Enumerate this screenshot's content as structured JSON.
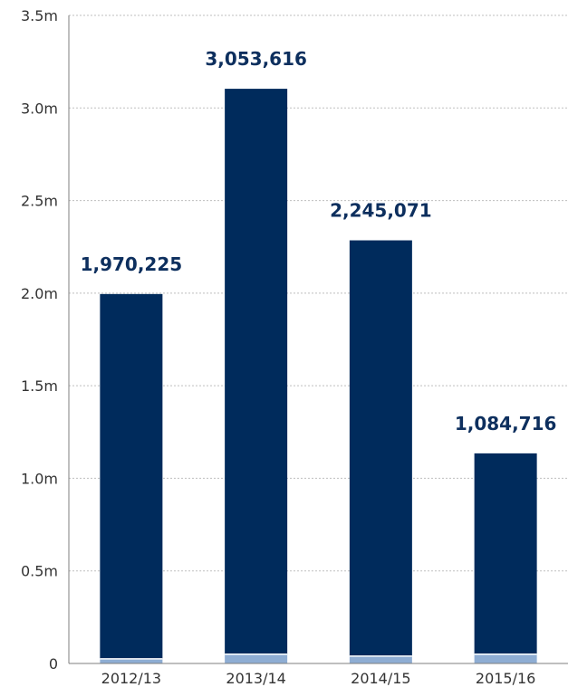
{
  "chart_data": {
    "type": "bar",
    "title": "",
    "xlabel": "",
    "ylabel": "",
    "categories": [
      "2012/13",
      "2013/14",
      "2014/15",
      "2015/16"
    ],
    "series": [
      {
        "values": [
          1970225,
          3053616,
          2245071,
          1084716
        ]
      },
      {
        "values": [
          25000,
          50000,
          40000,
          50000
        ]
      }
    ],
    "data_labels": [
      "1,970,225",
      "3,053,616",
      "2,245,071",
      "1,084,716"
    ],
    "ylim": [
      0,
      3500000
    ],
    "yticks": [
      0,
      500000,
      1000000,
      1500000,
      2000000,
      2500000,
      3000000,
      3500000
    ],
    "ytick_labels": [
      "0",
      "0.5m",
      "1.0m",
      "1.5m",
      "2.0m",
      "2.5m",
      "3.0m",
      "3.5m"
    ],
    "grid": true,
    "colors": {
      "main": "#002b5c",
      "base": "#8eadd3",
      "label": "#0d2f5e",
      "grid": "#bfbfbf",
      "axis": "#7f7f7f"
    }
  }
}
